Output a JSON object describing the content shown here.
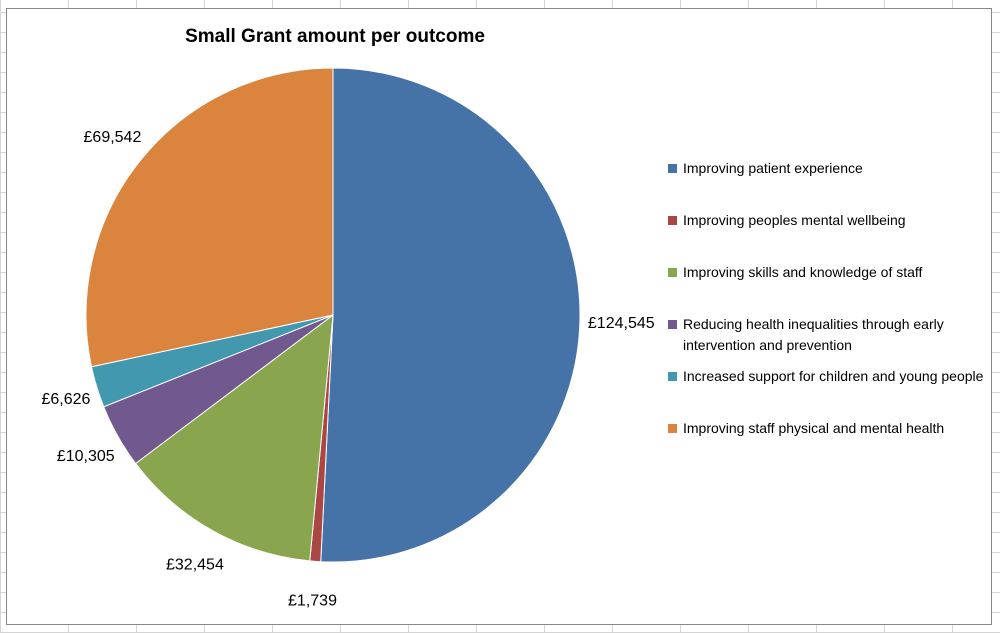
{
  "chart_data": {
    "type": "pie",
    "title": "Small Grant amount per outcome",
    "legend_position": "right",
    "slices": [
      {
        "name": "Improving patient experience",
        "value": 124545,
        "label": "£124,545",
        "color": "#4572a7"
      },
      {
        "name": "Improving peoples mental wellbeing",
        "value": 1739,
        "label": "£1,739",
        "color": "#aa4643"
      },
      {
        "name": "Improving skills and knowledge of staff",
        "value": 32454,
        "label": "£32,454",
        "color": "#89a54e"
      },
      {
        "name": "Reducing health inequalities through early intervention and prevention",
        "value": 10305,
        "label": "£10,305",
        "color": "#71588f"
      },
      {
        "name": "Increased support for children and young people",
        "value": 6626,
        "label": "£6,626",
        "color": "#4198af"
      },
      {
        "name": "Improving staff physical and mental health",
        "value": 69542,
        "label": "£69,542",
        "color": "#db843d"
      }
    ]
  }
}
